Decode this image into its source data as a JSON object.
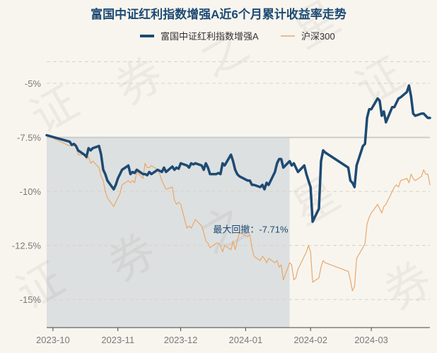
{
  "chart_data": {
    "type": "line",
    "title": "富国中证红利指数增强A近6个月累计收益率走势",
    "watermark": "证券之星",
    "colors": {
      "fund": "#1d4a73",
      "index": "#e8a86b",
      "drawdown_fill": "#1d4a73",
      "zero_line": "#cccccc"
    },
    "legend": {
      "position": "top-center"
    },
    "grid": "horizontal-dashed",
    "ylim": [
      -16.3,
      -3.3
    ],
    "y_ticks": [
      {
        "value": -5,
        "label": "-5%"
      },
      {
        "value": -7.5,
        "label": "-7.5%"
      },
      {
        "value": -10,
        "label": "-10%"
      },
      {
        "value": -12.5,
        "label": "-12.5%"
      },
      {
        "value": -15,
        "label": "-15%"
      }
    ],
    "x_ticks": [
      {
        "date": "2023-10-01",
        "label": "2023-10"
      },
      {
        "date": "2023-11-01",
        "label": "2023-11"
      },
      {
        "date": "2023-12-01",
        "label": "2023-12"
      },
      {
        "date": "2024-01-01",
        "label": "2024-01"
      },
      {
        "date": "2024-02-01",
        "label": "2024-02"
      },
      {
        "date": "2024-03-01",
        "label": "2024-03"
      }
    ],
    "xlim": [
      "2023-09-28",
      "2024-03-29"
    ],
    "reference_line": -7.5,
    "drawdown": {
      "label": "最大回撤：-7.71%",
      "start": "2023-09-28",
      "end": "2024-01-22"
    },
    "series": [
      {
        "name": "富国中证红利指数增强A",
        "points": [
          [
            "2023-09-28",
            -7.4
          ],
          [
            "2023-10-09",
            -7.7
          ],
          [
            "2023-10-10",
            -7.85
          ],
          [
            "2023-10-11",
            -7.8
          ],
          [
            "2023-10-12",
            -7.9
          ],
          [
            "2023-10-13",
            -8.1
          ],
          [
            "2023-10-16",
            -8.3
          ],
          [
            "2023-10-17",
            -8.4
          ],
          [
            "2023-10-18",
            -8.0
          ],
          [
            "2023-10-19",
            -8.1
          ],
          [
            "2023-10-20",
            -8.0
          ],
          [
            "2023-10-23",
            -7.9
          ],
          [
            "2023-10-24",
            -8.3
          ],
          [
            "2023-10-25",
            -9.0
          ],
          [
            "2023-10-26",
            -9.2
          ],
          [
            "2023-10-27",
            -9.5
          ],
          [
            "2023-10-30",
            -9.9
          ],
          [
            "2023-10-31",
            -9.7
          ],
          [
            "2023-11-01",
            -9.4
          ],
          [
            "2023-11-02",
            -9.2
          ],
          [
            "2023-11-03",
            -9.0
          ],
          [
            "2023-11-06",
            -8.8
          ],
          [
            "2023-11-07",
            -9.2
          ],
          [
            "2023-11-08",
            -9.1
          ],
          [
            "2023-11-09",
            -9.15
          ],
          [
            "2023-11-10",
            -9.0
          ],
          [
            "2023-11-13",
            -9.2
          ],
          [
            "2023-11-14",
            -9.2
          ],
          [
            "2023-11-15",
            -9.25
          ],
          [
            "2023-11-16",
            -9.1
          ],
          [
            "2023-11-17",
            -9.2
          ],
          [
            "2023-11-20",
            -9.0
          ],
          [
            "2023-11-21",
            -9.05
          ],
          [
            "2023-11-22",
            -9.1
          ],
          [
            "2023-11-23",
            -8.9
          ],
          [
            "2023-11-24",
            -9.1
          ],
          [
            "2023-11-27",
            -8.85
          ],
          [
            "2023-11-28",
            -9.0
          ],
          [
            "2023-11-29",
            -8.9
          ],
          [
            "2023-11-30",
            -8.95
          ],
          [
            "2023-12-01",
            -8.7
          ],
          [
            "2023-12-04",
            -8.8
          ],
          [
            "2023-12-05",
            -8.9
          ],
          [
            "2023-12-06",
            -8.7
          ],
          [
            "2023-12-07",
            -8.75
          ],
          [
            "2023-12-08",
            -8.7
          ],
          [
            "2023-12-11",
            -8.8
          ],
          [
            "2023-12-12",
            -9.0
          ],
          [
            "2023-12-13",
            -8.7
          ],
          [
            "2023-12-14",
            -8.9
          ],
          [
            "2023-12-15",
            -9.2
          ],
          [
            "2023-12-18",
            -9.2
          ],
          [
            "2023-12-19",
            -9.15
          ],
          [
            "2023-12-20",
            -9.2
          ],
          [
            "2023-12-21",
            -8.7
          ],
          [
            "2023-12-22",
            -8.8
          ],
          [
            "2023-12-25",
            -8.3
          ],
          [
            "2023-12-26",
            -8.6
          ],
          [
            "2023-12-27",
            -9.0
          ],
          [
            "2023-12-28",
            -9.2
          ],
          [
            "2023-12-29",
            -9.3
          ],
          [
            "2024-01-02",
            -9.5
          ],
          [
            "2024-01-03",
            -9.5
          ],
          [
            "2024-01-04",
            -9.7
          ],
          [
            "2024-01-05",
            -9.7
          ],
          [
            "2024-01-08",
            -9.8
          ],
          [
            "2024-01-09",
            -9.7
          ],
          [
            "2024-01-10",
            -9.9
          ],
          [
            "2024-01-11",
            -9.6
          ],
          [
            "2024-01-12",
            -9.7
          ],
          [
            "2024-01-15",
            -9.1
          ],
          [
            "2024-01-16",
            -8.7
          ],
          [
            "2024-01-17",
            -8.5
          ],
          [
            "2024-01-18",
            -8.5
          ],
          [
            "2024-01-19",
            -8.9
          ],
          [
            "2024-01-22",
            -8.6
          ],
          [
            "2024-01-23",
            -8.8
          ],
          [
            "2024-01-24",
            -8.7
          ],
          [
            "2024-01-25",
            -8.9
          ],
          [
            "2024-01-26",
            -9.1
          ],
          [
            "2024-01-29",
            -8.8
          ],
          [
            "2024-01-30",
            -9.2
          ],
          [
            "2024-01-31",
            -9.5
          ],
          [
            "2024-02-01",
            -9.8
          ],
          [
            "2024-02-02",
            -11.4
          ],
          [
            "2024-02-05",
            -10.8
          ],
          [
            "2024-02-06",
            -8.6
          ],
          [
            "2024-02-07",
            -8.1
          ],
          [
            "2024-02-08",
            -8.2
          ],
          [
            "2024-02-19",
            -8.9
          ],
          [
            "2024-02-20",
            -9.5
          ],
          [
            "2024-02-21",
            -9.6
          ],
          [
            "2024-02-22",
            -9.8
          ],
          [
            "2024-02-23",
            -8.8
          ],
          [
            "2024-02-26",
            -7.9
          ],
          [
            "2024-02-27",
            -7.8
          ],
          [
            "2024-02-28",
            -6.6
          ],
          [
            "2024-02-29",
            -6.2
          ],
          [
            "2024-03-01",
            -6.2
          ],
          [
            "2024-03-04",
            -5.7
          ],
          [
            "2024-03-05",
            -5.8
          ],
          [
            "2024-03-06",
            -6.5
          ],
          [
            "2024-03-07",
            -6.3
          ],
          [
            "2024-03-08",
            -6.8
          ],
          [
            "2024-03-11",
            -6.1
          ],
          [
            "2024-03-12",
            -6.1
          ],
          [
            "2024-03-13",
            -5.9
          ],
          [
            "2024-03-14",
            -5.7
          ],
          [
            "2024-03-15",
            -5.65
          ],
          [
            "2024-03-18",
            -5.4
          ],
          [
            "2024-03-19",
            -5.1
          ],
          [
            "2024-03-20",
            -5.6
          ],
          [
            "2024-03-21",
            -6.4
          ],
          [
            "2024-03-22",
            -6.5
          ],
          [
            "2024-03-25",
            -6.4
          ],
          [
            "2024-03-26",
            -6.4
          ],
          [
            "2024-03-27",
            -6.5
          ],
          [
            "2024-03-28",
            -6.6
          ],
          [
            "2024-03-29",
            -6.6
          ]
        ]
      },
      {
        "name": "沪深300",
        "points": [
          [
            "2023-09-28",
            -7.4
          ],
          [
            "2023-10-09",
            -7.9
          ],
          [
            "2023-10-10",
            -7.8
          ],
          [
            "2023-10-11",
            -7.9
          ],
          [
            "2023-10-12",
            -7.8
          ],
          [
            "2023-10-13",
            -8.3
          ],
          [
            "2023-10-16",
            -8.3
          ],
          [
            "2023-10-17",
            -8.5
          ],
          [
            "2023-10-18",
            -8.4
          ],
          [
            "2023-10-19",
            -8.7
          ],
          [
            "2023-10-20",
            -8.6
          ],
          [
            "2023-10-23",
            -8.9
          ],
          [
            "2023-10-24",
            -9.3
          ],
          [
            "2023-10-25",
            -9.5
          ],
          [
            "2023-10-26",
            -10.0
          ],
          [
            "2023-10-27",
            -10.3
          ],
          [
            "2023-10-30",
            -10.7
          ],
          [
            "2023-10-31",
            -10.5
          ],
          [
            "2023-11-01",
            -10.3
          ],
          [
            "2023-11-02",
            -10.1
          ],
          [
            "2023-11-03",
            -9.7
          ],
          [
            "2023-11-06",
            -9.5
          ],
          [
            "2023-11-07",
            -9.6
          ],
          [
            "2023-11-08",
            -9.5
          ],
          [
            "2023-11-09",
            -9.6
          ],
          [
            "2023-11-10",
            -9.1
          ],
          [
            "2023-11-13",
            -9.4
          ],
          [
            "2023-11-14",
            -8.7
          ],
          [
            "2023-11-15",
            -8.9
          ],
          [
            "2023-11-16",
            -8.9
          ],
          [
            "2023-11-17",
            -8.8
          ],
          [
            "2023-11-20",
            -9.0
          ],
          [
            "2023-11-21",
            -9.2
          ],
          [
            "2023-11-22",
            -9.5
          ],
          [
            "2023-11-23",
            -9.7
          ],
          [
            "2023-11-24",
            -9.9
          ],
          [
            "2023-11-27",
            -9.8
          ],
          [
            "2023-11-28",
            -10.4
          ],
          [
            "2023-11-29",
            -10.6
          ],
          [
            "2023-11-30",
            -10.5
          ],
          [
            "2023-12-01",
            -10.6
          ],
          [
            "2023-12-04",
            -11.7
          ],
          [
            "2023-12-05",
            -11.6
          ],
          [
            "2023-12-06",
            -11.7
          ],
          [
            "2023-12-07",
            -11.5
          ],
          [
            "2023-12-08",
            -11.3
          ],
          [
            "2023-12-11",
            -11.6
          ],
          [
            "2023-12-12",
            -11.9
          ],
          [
            "2023-12-13",
            -12.3
          ],
          [
            "2023-12-14",
            -12.4
          ],
          [
            "2023-12-15",
            -12.6
          ],
          [
            "2023-12-18",
            -12.4
          ],
          [
            "2023-12-19",
            -12.4
          ],
          [
            "2023-12-20",
            -12.5
          ],
          [
            "2023-12-21",
            -12.8
          ],
          [
            "2023-12-22",
            -12.5
          ],
          [
            "2023-12-25",
            -12.7
          ],
          [
            "2023-12-26",
            -12.3
          ],
          [
            "2023-12-27",
            -12.7
          ],
          [
            "2023-12-28",
            -12.3
          ],
          [
            "2023-12-29",
            -11.9
          ],
          [
            "2024-01-02",
            -12.1
          ],
          [
            "2024-01-03",
            -12.0
          ],
          [
            "2024-01-04",
            -12.6
          ],
          [
            "2024-01-05",
            -13.0
          ],
          [
            "2024-01-08",
            -13.2
          ],
          [
            "2024-01-09",
            -13.0
          ],
          [
            "2024-01-10",
            -13.1
          ],
          [
            "2024-01-11",
            -13.3
          ],
          [
            "2024-01-12",
            -13.1
          ],
          [
            "2024-01-15",
            -13.3
          ],
          [
            "2024-01-16",
            -13.2
          ],
          [
            "2024-01-17",
            -13.5
          ],
          [
            "2024-01-18",
            -13.4
          ],
          [
            "2024-01-19",
            -14.1
          ],
          [
            "2024-01-22",
            -13.3
          ],
          [
            "2024-01-23",
            -13.4
          ],
          [
            "2024-01-24",
            -14.1
          ],
          [
            "2024-01-25",
            -14.0
          ],
          [
            "2024-01-26",
            -13.6
          ],
          [
            "2024-01-29",
            -13.0
          ],
          [
            "2024-01-30",
            -12.8
          ],
          [
            "2024-01-31",
            -12.5
          ],
          [
            "2024-02-01",
            -12.8
          ],
          [
            "2024-02-02",
            -14.2
          ],
          [
            "2024-02-05",
            -14.0
          ],
          [
            "2024-02-06",
            -13.5
          ],
          [
            "2024-02-07",
            -13.2
          ],
          [
            "2024-02-08",
            -13.3
          ],
          [
            "2024-02-19",
            -13.7
          ],
          [
            "2024-02-20",
            -14.1
          ],
          [
            "2024-02-21",
            -14.6
          ],
          [
            "2024-02-22",
            -14.4
          ],
          [
            "2024-02-23",
            -13.1
          ],
          [
            "2024-02-26",
            -12.6
          ],
          [
            "2024-02-27",
            -12.4
          ],
          [
            "2024-02-28",
            -11.5
          ],
          [
            "2024-02-29",
            -11.2
          ],
          [
            "2024-03-01",
            -11.0
          ],
          [
            "2024-03-04",
            -10.6
          ],
          [
            "2024-03-05",
            -10.8
          ],
          [
            "2024-03-06",
            -11.0
          ],
          [
            "2024-03-07",
            -10.7
          ],
          [
            "2024-03-08",
            -10.6
          ],
          [
            "2024-03-11",
            -10.0
          ],
          [
            "2024-03-12",
            -9.8
          ],
          [
            "2024-03-13",
            -9.7
          ],
          [
            "2024-03-14",
            -9.8
          ],
          [
            "2024-03-15",
            -9.5
          ],
          [
            "2024-03-18",
            -9.4
          ],
          [
            "2024-03-19",
            -9.6
          ],
          [
            "2024-03-20",
            -9.2
          ],
          [
            "2024-03-21",
            -9.4
          ],
          [
            "2024-03-22",
            -9.5
          ],
          [
            "2024-03-25",
            -9.3
          ],
          [
            "2024-03-26",
            -9.0
          ],
          [
            "2024-03-27",
            -9.2
          ],
          [
            "2024-03-28",
            -9.2
          ],
          [
            "2024-03-29",
            -9.7
          ]
        ]
      }
    ]
  }
}
